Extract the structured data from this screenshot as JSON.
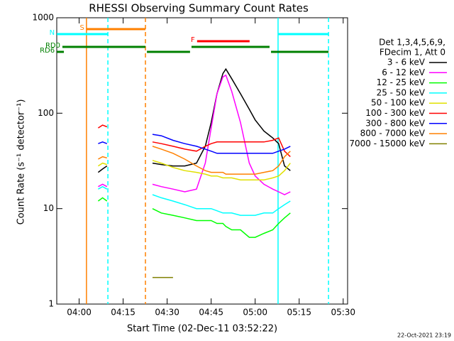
{
  "chart_data": {
    "type": "line",
    "title": "RHESSI Observing Summary Count Rates",
    "x_label": "Start Time (02-Dec-11 03:52:22)",
    "y_label": "Count Rate (s⁻¹ detector⁻¹)",
    "legend_header": [
      "Det 1,3,4,5,6,9,",
      "FDecim 1, Att 0"
    ],
    "timestamp": "22-Oct-2021 23:19",
    "log_y": true,
    "xlim": [
      232.37,
      331.5
    ],
    "ylim": [
      1,
      1000
    ],
    "xticks": [
      {
        "value": 240,
        "label": "04:00"
      },
      {
        "value": 255,
        "label": "04:15"
      },
      {
        "value": 270,
        "label": "04:30"
      },
      {
        "value": 285,
        "label": "04:45"
      },
      {
        "value": 300,
        "label": "05:00"
      },
      {
        "value": 315,
        "label": "05:15"
      },
      {
        "value": 330,
        "label": "05:30"
      }
    ],
    "yticks": [
      1,
      10,
      100,
      1000
    ],
    "x": [
      246.5,
      248,
      249.5,
      255,
      265,
      268,
      272,
      276,
      280,
      283,
      285,
      287,
      289,
      290,
      292,
      295,
      298,
      300,
      303,
      306,
      308,
      310,
      312
    ],
    "series": [
      {
        "name": "3 - 6 keV",
        "color": "#000000",
        "values": [
          24,
          26,
          28,
          null,
          30,
          29,
          28,
          28,
          30,
          45,
          80,
          160,
          260,
          290,
          230,
          160,
          110,
          85,
          65,
          55,
          48,
          28,
          25
        ]
      },
      {
        "name": "6 - 12 keV",
        "color": "#ff00ff",
        "values": [
          17,
          18,
          17,
          null,
          18,
          17,
          16,
          15,
          16,
          30,
          70,
          160,
          240,
          250,
          170,
          80,
          30,
          22,
          18,
          16,
          15,
          14,
          15
        ]
      },
      {
        "name": "12 - 25 keV",
        "color": "#00ff00",
        "values": [
          12,
          13,
          12,
          null,
          10,
          9,
          8.5,
          8,
          7.5,
          7.5,
          7.5,
          7,
          7,
          6.5,
          6,
          6,
          5,
          5,
          5.5,
          6,
          7,
          8,
          9
        ]
      },
      {
        "name": "25 - 50 keV",
        "color": "#00ffff",
        "values": [
          16,
          17,
          16,
          null,
          14,
          13,
          12,
          11,
          10,
          10,
          10,
          9.5,
          9,
          9,
          9,
          8.5,
          8.5,
          8.5,
          9,
          9,
          10,
          11,
          12
        ]
      },
      {
        "name": "50 - 100 keV",
        "color": "#e0e000",
        "values": [
          28,
          30,
          29,
          null,
          32,
          30,
          27,
          25,
          24,
          23,
          22,
          22,
          21,
          21,
          21,
          20,
          20,
          20,
          20,
          21,
          22,
          25,
          30
        ]
      },
      {
        "name": "100 - 300 keV",
        "color": "#ff0000",
        "values": [
          70,
          75,
          72,
          null,
          50,
          48,
          45,
          42,
          40,
          45,
          48,
          50,
          50,
          50,
          50,
          50,
          50,
          50,
          50,
          52,
          55,
          40,
          35
        ]
      },
      {
        "name": "300 - 800 keV",
        "color": "#0000ff",
        "values": [
          48,
          50,
          48,
          null,
          60,
          58,
          52,
          48,
          45,
          42,
          40,
          38,
          38,
          38,
          38,
          38,
          38,
          38,
          38,
          38,
          40,
          42,
          45
        ]
      },
      {
        "name": "800 - 7000 keV",
        "color": "#ff8000",
        "values": [
          33,
          35,
          34,
          null,
          45,
          42,
          38,
          33,
          28,
          25,
          24,
          24,
          24,
          23,
          23,
          23,
          23,
          23,
          24,
          25,
          28,
          35,
          40
        ]
      },
      {
        "name": "7000 - 15000 keV",
        "color": "#808000",
        "values": [
          null,
          null,
          null,
          null,
          1.9,
          1.9,
          1.9,
          null,
          null,
          null,
          null,
          null,
          null,
          null,
          null,
          null,
          null,
          null,
          null,
          null,
          null,
          null,
          null
        ]
      }
    ],
    "flags": [
      {
        "label": "S",
        "color": "#ff8000",
        "segments": [
          [
            242.5,
            262.6
          ]
        ]
      },
      {
        "label": "N",
        "color": "#00ffff",
        "segments": [
          [
            232.4,
            249.8
          ],
          [
            307.8,
            325
          ]
        ]
      },
      {
        "label": "F",
        "color": "#ff0000",
        "segments": [
          [
            280.2,
            298.1
          ]
        ]
      },
      {
        "label": "RD0",
        "color": "#008000",
        "segments": [
          [
            234.3,
            262.6
          ],
          [
            278.3,
            304.9
          ]
        ]
      },
      {
        "label": "RD6",
        "color": "#008000",
        "segments": [
          [
            232.4,
            234.8
          ],
          [
            263.1,
            277.8
          ],
          [
            305.4,
            325
          ]
        ]
      }
    ],
    "markers": [
      {
        "x": 242.5,
        "color": "#ff8000",
        "dashed": false
      },
      {
        "x": 249.8,
        "color": "#00ffff",
        "dashed": true
      },
      {
        "x": 262.6,
        "color": "#ff8000",
        "dashed": true
      },
      {
        "x": 307.8,
        "color": "#00ffff",
        "dashed": false
      },
      {
        "x": 325,
        "color": "#00ffff",
        "dashed": true
      }
    ]
  }
}
